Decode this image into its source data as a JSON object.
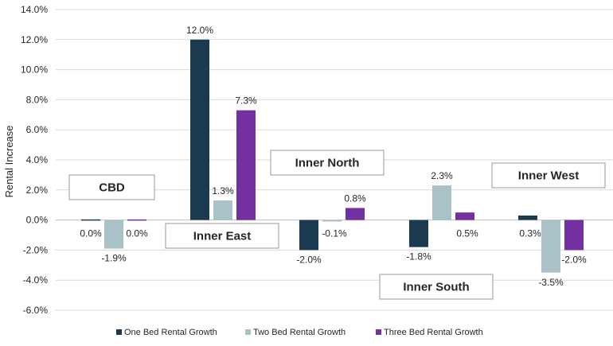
{
  "chart_data": {
    "type": "bar",
    "ylabel": "Rental Increase",
    "ylim": [
      -6,
      14
    ],
    "yticks": [
      -6,
      -4,
      -2,
      0,
      2,
      4,
      6,
      8,
      10,
      12,
      14
    ],
    "ytick_labels": [
      "-6.0%",
      "-4.0%",
      "-2.0%",
      "0.0%",
      "2.0%",
      "4.0%",
      "6.0%",
      "8.0%",
      "10.0%",
      "12.0%",
      "14.0%"
    ],
    "grid": true,
    "legend_position": "bottom",
    "categories": [
      "CBD",
      "Inner East",
      "Inner North",
      "Inner South",
      "Inner West"
    ],
    "series": [
      {
        "name": "One Bed Rental Growth",
        "color": "#1b3a4f",
        "values": [
          0.0,
          12.0,
          -2.0,
          -1.8,
          0.3
        ],
        "labels": [
          "0.0%",
          "12.0%",
          "-2.0%",
          "-1.8%",
          "0.3%"
        ]
      },
      {
        "name": "Two Bed Rental Growth",
        "color": "#a9c2c8",
        "values": [
          -1.9,
          1.3,
          -0.1,
          2.3,
          -3.5
        ],
        "labels": [
          "-1.9%",
          "1.3%",
          "-0.1%",
          "2.3%",
          "-3.5%"
        ]
      },
      {
        "name": "Three Bed Rental Growth",
        "color": "#7230a0",
        "values": [
          0.0,
          7.3,
          0.8,
          0.5,
          -2.0
        ],
        "labels": [
          "0.0%",
          "7.3%",
          "0.8%",
          "0.5%",
          "-2.0%"
        ]
      }
    ]
  }
}
